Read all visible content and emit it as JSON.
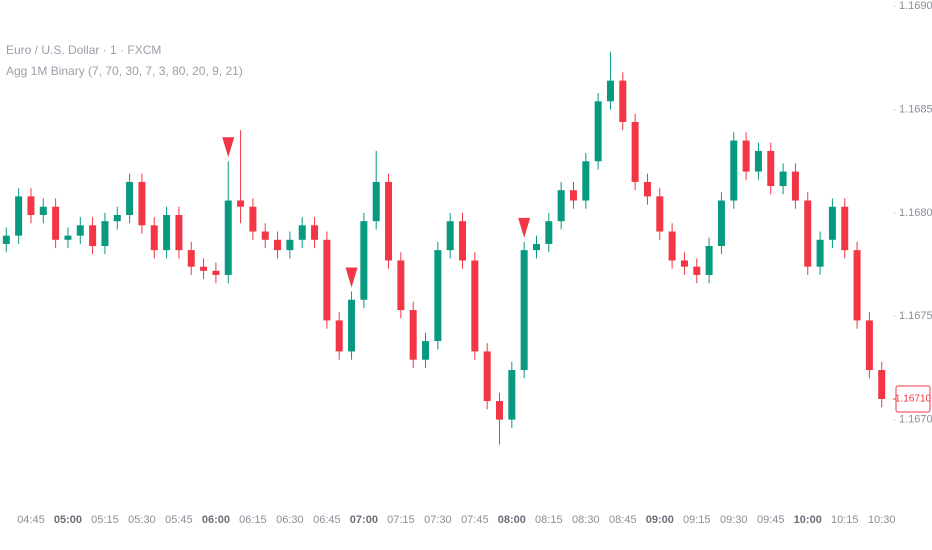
{
  "chart_data": {
    "type": "candlestick",
    "title": "Euro / U.S. Dollar · 1 · FXCM",
    "indicator": "Agg 1M Binary (7, 70, 30, 7, 3, 80, 20, 9, 21)",
    "categories": [
      "04:35",
      "04:40",
      "04:45",
      "04:50",
      "04:55",
      "05:00",
      "05:05",
      "05:10",
      "05:15",
      "05:20",
      "05:25",
      "05:30",
      "05:35",
      "05:40",
      "05:45",
      "05:50",
      "05:55",
      "06:00",
      "06:05",
      "06:10",
      "06:15",
      "06:20",
      "06:25",
      "06:30",
      "06:35",
      "06:40",
      "06:45",
      "06:50",
      "06:55",
      "07:00",
      "07:05",
      "07:10",
      "07:15",
      "07:20",
      "07:25",
      "07:30",
      "07:35",
      "07:40",
      "07:45",
      "07:50",
      "07:55",
      "08:00",
      "08:05",
      "08:10",
      "08:15",
      "08:20",
      "08:25",
      "08:30",
      "08:35",
      "08:40",
      "08:45",
      "08:50",
      "08:55",
      "09:00",
      "09:05",
      "09:10",
      "09:15",
      "09:20",
      "09:25",
      "09:30",
      "09:35",
      "09:40",
      "09:45",
      "09:50",
      "09:55",
      "10:00",
      "10:05",
      "10:10",
      "10:15",
      "10:20",
      "10:25",
      "10:30"
    ],
    "open": [
      1.16785,
      1.16789,
      1.16808,
      1.16799,
      1.16803,
      1.16787,
      1.16789,
      1.16794,
      1.16784,
      1.16796,
      1.16799,
      1.16815,
      1.16794,
      1.16782,
      1.16799,
      1.16782,
      1.16774,
      1.16772,
      1.1677,
      1.16806,
      1.16803,
      1.16791,
      1.16787,
      1.16782,
      1.16787,
      1.16794,
      1.16787,
      1.16748,
      1.16733,
      1.16758,
      1.16796,
      1.16815,
      1.16777,
      1.16753,
      1.16729,
      1.16738,
      1.16782,
      1.16796,
      1.16777,
      1.16733,
      1.16709,
      1.167,
      1.16724,
      1.16782,
      1.16785,
      1.16796,
      1.16811,
      1.16806,
      1.16825,
      1.16854,
      1.16864,
      1.16844,
      1.16815,
      1.16808,
      1.16791,
      1.16777,
      1.16774,
      1.1677,
      1.16784,
      1.16806,
      1.16835,
      1.1682,
      1.1683,
      1.16813,
      1.1682,
      1.16806,
      1.16774,
      1.16787,
      1.16803,
      1.16782,
      1.16748,
      1.16724
    ],
    "high": [
      1.16793,
      1.16812,
      1.16812,
      1.16807,
      1.16807,
      1.16793,
      1.16798,
      1.16798,
      1.168,
      1.16803,
      1.16819,
      1.16819,
      1.16798,
      1.16803,
      1.16803,
      1.16786,
      1.16778,
      1.16776,
      1.16825,
      1.1684,
      1.16807,
      1.16795,
      1.16791,
      1.16791,
      1.16798,
      1.16798,
      1.16791,
      1.16752,
      1.16762,
      1.168,
      1.1683,
      1.16819,
      1.16781,
      1.16757,
      1.16742,
      1.16786,
      1.168,
      1.168,
      1.16781,
      1.16737,
      1.16713,
      1.16728,
      1.16786,
      1.16789,
      1.168,
      1.16815,
      1.16815,
      1.16829,
      1.16858,
      1.16878,
      1.16868,
      1.16848,
      1.16819,
      1.16812,
      1.16795,
      1.16781,
      1.16778,
      1.16788,
      1.1681,
      1.16839,
      1.16839,
      1.16834,
      1.16834,
      1.16824,
      1.16824,
      1.1681,
      1.16791,
      1.16807,
      1.16807,
      1.16786,
      1.16752,
      1.16728
    ],
    "low": [
      1.16781,
      1.16785,
      1.16795,
      1.16795,
      1.16783,
      1.16783,
      1.16785,
      1.1678,
      1.1678,
      1.16792,
      1.16795,
      1.1679,
      1.16778,
      1.16778,
      1.16778,
      1.1677,
      1.16768,
      1.16766,
      1.16766,
      1.16795,
      1.16787,
      1.16783,
      1.16778,
      1.16778,
      1.16783,
      1.16783,
      1.16744,
      1.16729,
      1.16729,
      1.16754,
      1.16792,
      1.16773,
      1.16749,
      1.16725,
      1.16725,
      1.16734,
      1.16778,
      1.16773,
      1.16729,
      1.16705,
      1.16688,
      1.16696,
      1.1672,
      1.16778,
      1.16781,
      1.16792,
      1.16802,
      1.16802,
      1.16821,
      1.1685,
      1.1684,
      1.16811,
      1.16804,
      1.16787,
      1.16773,
      1.1677,
      1.16766,
      1.16766,
      1.1678,
      1.16802,
      1.16816,
      1.16816,
      1.16809,
      1.16809,
      1.16802,
      1.1677,
      1.1677,
      1.16783,
      1.16778,
      1.16744,
      1.1672,
      1.16706
    ],
    "close": [
      1.16789,
      1.16808,
      1.16799,
      1.16803,
      1.16787,
      1.16789,
      1.16794,
      1.16784,
      1.16796,
      1.16799,
      1.16815,
      1.16794,
      1.16782,
      1.16799,
      1.16782,
      1.16774,
      1.16772,
      1.1677,
      1.16806,
      1.16803,
      1.16791,
      1.16787,
      1.16782,
      1.16787,
      1.16794,
      1.16787,
      1.16748,
      1.16733,
      1.16758,
      1.16796,
      1.16815,
      1.16777,
      1.16753,
      1.16729,
      1.16738,
      1.16782,
      1.16796,
      1.16777,
      1.16733,
      1.16709,
      1.167,
      1.16724,
      1.16782,
      1.16785,
      1.16796,
      1.16811,
      1.16806,
      1.16825,
      1.16854,
      1.16864,
      1.16844,
      1.16815,
      1.16808,
      1.16791,
      1.16777,
      1.16774,
      1.1677,
      1.16784,
      1.16806,
      1.16835,
      1.1682,
      1.1683,
      1.16813,
      1.1682,
      1.16806,
      1.16774,
      1.16787,
      1.16803,
      1.16782,
      1.16748,
      1.16724,
      1.1671
    ],
    "up_color": "#089981",
    "down_color": "#f23645",
    "signals": [
      "06:05",
      "06:55",
      "08:05"
    ],
    "signal_color": "#f23645",
    "last_price": {
      "value": 1.1671,
      "label": "1.16710"
    },
    "ylim": [
      1.16665,
      1.16903
    ],
    "yticks": [
      {
        "value": 1.167,
        "label": "1.16700"
      },
      {
        "value": 1.1675,
        "label": "1.16750"
      },
      {
        "value": 1.168,
        "label": "1.16800"
      },
      {
        "value": 1.1685,
        "label": "1.16850"
      },
      {
        "value": 1.169,
        "label": "1.16900"
      }
    ],
    "xticks": [
      "04:45",
      "05:00",
      "05:15",
      "05:30",
      "05:45",
      "06:00",
      "06:15",
      "06:30",
      "06:45",
      "07:00",
      "07:15",
      "07:30",
      "07:45",
      "08:00",
      "08:15",
      "08:30",
      "08:45",
      "09:00",
      "09:15",
      "09:30",
      "09:45",
      "10:00",
      "10:15",
      "10:30"
    ]
  }
}
